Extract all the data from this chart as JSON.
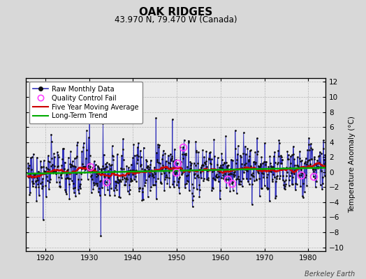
{
  "title": "OAK RIDGES",
  "subtitle": "43.970 N, 79.470 W (Canada)",
  "ylabel": "Temperature Anomaly (°C)",
  "credit": "Berkeley Earth",
  "xlim": [
    1915.5,
    1984.0
  ],
  "ylim": [
    -10.5,
    12.5
  ],
  "yticks": [
    -10,
    -8,
    -6,
    -4,
    -2,
    0,
    2,
    4,
    6,
    8,
    10,
    12
  ],
  "xticks": [
    1920,
    1930,
    1940,
    1950,
    1960,
    1970,
    1980
  ],
  "start_year": 1916,
  "end_year": 1983,
  "bg_color": "#d8d8d8",
  "plot_bg_color": "#ebebeb",
  "raw_line_color": "#3333bb",
  "raw_dot_color": "#111111",
  "ma_color": "#cc0000",
  "trend_color": "#00aa00",
  "qc_color": "#ff44ff"
}
